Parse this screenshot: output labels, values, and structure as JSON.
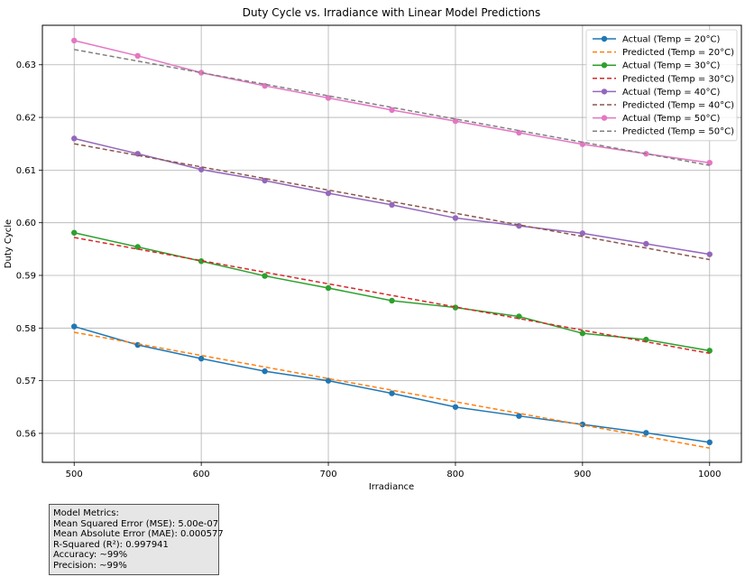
{
  "chart_data": {
    "type": "line",
    "title": "Duty Cycle vs. Irradiance with Linear Model Predictions",
    "xlabel": "Irradiance",
    "ylabel": "Duty Cycle",
    "xlim": [
      475,
      1025
    ],
    "ylim": [
      0.5545,
      0.6375
    ],
    "x_ticks": [
      500,
      600,
      700,
      800,
      900,
      1000
    ],
    "y_ticks": [
      0.56,
      0.57,
      0.58,
      0.59,
      0.6,
      0.61,
      0.62,
      0.63
    ],
    "grid": true,
    "legend_position": "top-right",
    "x": [
      500,
      550,
      600,
      650,
      700,
      750,
      800,
      850,
      900,
      950,
      1000
    ],
    "series": [
      {
        "name": "Actual (Temp = 20°C)",
        "style": "solid-marker",
        "color": "#1f77b4",
        "values": [
          0.5803,
          0.5768,
          0.5742,
          0.5718,
          0.57,
          0.5676,
          0.565,
          0.5633,
          0.5617,
          0.5601,
          0.5583
        ]
      },
      {
        "name": "Predicted (Temp = 20°C)",
        "style": "dashed",
        "color": "#ff7f0e",
        "values": [
          0.5792,
          0.577,
          0.5748,
          0.5726,
          0.5704,
          0.5682,
          0.566,
          0.5638,
          0.5616,
          0.5594,
          0.5572
        ]
      },
      {
        "name": "Actual (Temp = 30°C)",
        "style": "solid-marker",
        "color": "#2ca02c",
        "values": [
          0.5981,
          0.5954,
          0.5927,
          0.5899,
          0.5876,
          0.5852,
          0.5839,
          0.5822,
          0.579,
          0.5778,
          0.5757
        ]
      },
      {
        "name": "Predicted (Temp = 30°C)",
        "style": "dashed",
        "color": "#d62728",
        "values": [
          0.5972,
          0.595,
          0.5928,
          0.5906,
          0.5884,
          0.5862,
          0.584,
          0.5818,
          0.5796,
          0.5774,
          0.5752
        ]
      },
      {
        "name": "Actual (Temp = 40°C)",
        "style": "solid-marker",
        "color": "#9467bd",
        "values": [
          0.616,
          0.6131,
          0.6101,
          0.608,
          0.6056,
          0.6034,
          0.6009,
          0.5994,
          0.598,
          0.596,
          0.594
        ]
      },
      {
        "name": "Predicted (Temp = 40°C)",
        "style": "dashed",
        "color": "#8c564b",
        "values": [
          0.615,
          0.6128,
          0.6106,
          0.6084,
          0.6062,
          0.604,
          0.6018,
          0.5996,
          0.5974,
          0.5952,
          0.593
        ]
      },
      {
        "name": "Actual (Temp = 50°C)",
        "style": "solid-marker",
        "color": "#e377c2",
        "values": [
          0.6346,
          0.6317,
          0.6285,
          0.626,
          0.6237,
          0.6214,
          0.6193,
          0.6171,
          0.6149,
          0.6131,
          0.6114
        ]
      },
      {
        "name": "Predicted (Temp = 50°C)",
        "style": "dashed",
        "color": "#7f7f7f",
        "values": [
          0.6329,
          0.6307,
          0.6285,
          0.6263,
          0.6241,
          0.6219,
          0.6197,
          0.6175,
          0.6153,
          0.6131,
          0.6109
        ]
      }
    ]
  },
  "metrics": {
    "title": "Model Metrics:",
    "mse": "Mean Squared Error (MSE): 5.00e-07",
    "mae": "Mean Absolute Error (MAE): 0.000577",
    "r2": "R-Squared (R²): 0.997941",
    "accuracy": "Accuracy: ~99%",
    "precision": "Precision: ~99%"
  }
}
